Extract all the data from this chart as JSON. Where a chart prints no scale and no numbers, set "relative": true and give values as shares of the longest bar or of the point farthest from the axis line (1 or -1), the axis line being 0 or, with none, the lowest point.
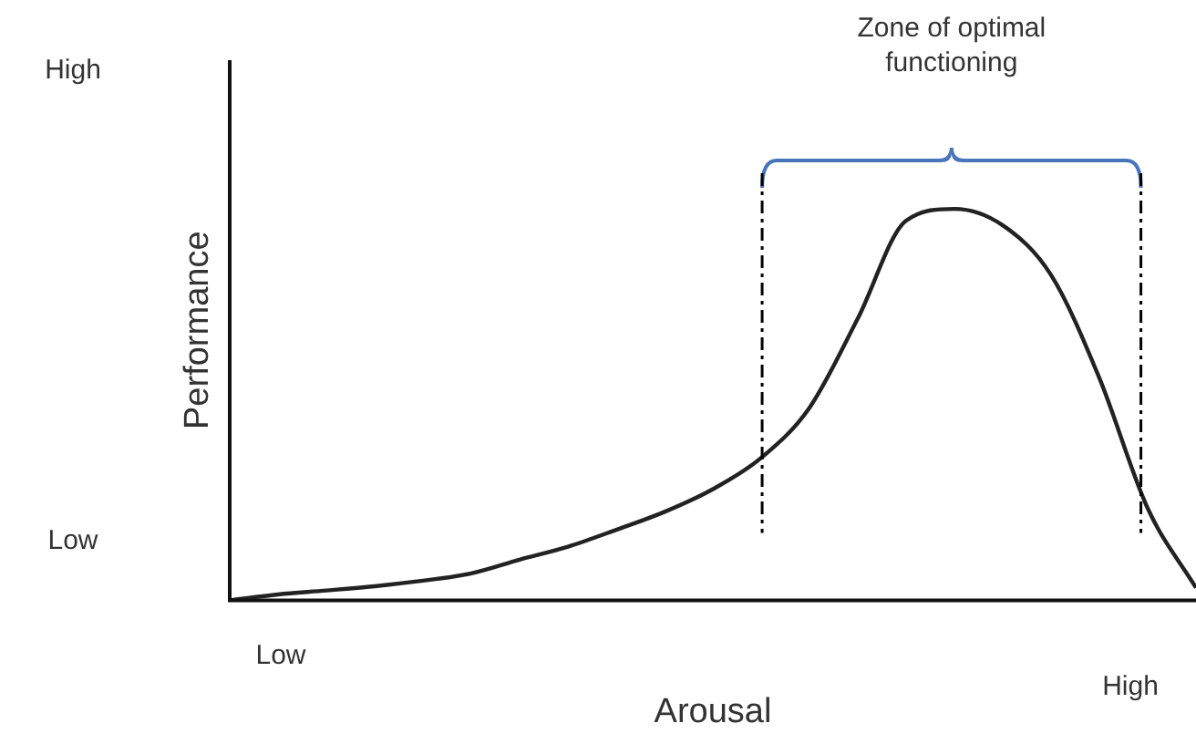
{
  "chart_data": {
    "type": "line",
    "relative": true,
    "xlabel": "Arousal",
    "ylabel": "Performance",
    "annotations": [
      "Zone of optimal functioning",
      "Low",
      "High",
      "Low",
      "High"
    ],
    "categories": [
      null,
      null,
      null,
      null,
      null,
      null,
      null,
      null,
      null,
      null,
      null,
      null,
      null,
      null,
      null,
      null,
      null,
      null,
      null,
      null,
      null
    ],
    "series": [
      {
        "color": "#222222",
        "values": [
          0,
          0.015,
          0.025,
          0.036,
          0.05,
          0.069,
          0.104,
          0.137,
          0.18,
          0.226,
          0.284,
          0.364,
          0.492,
          0.72,
          0.97,
          1.0,
          0.958,
          0.831,
          0.568,
          0.235,
          0.032
        ]
      }
    ],
    "grid": false,
    "legend": false,
    "marker": "none",
    "line_style": "solid"
  }
}
